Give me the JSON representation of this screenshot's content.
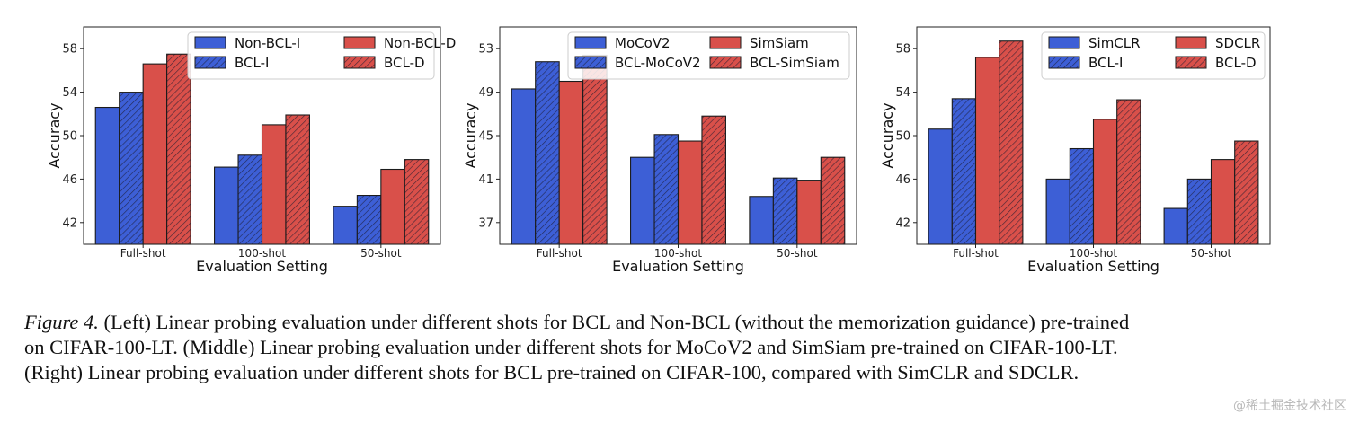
{
  "chart_data": [
    {
      "type": "bar",
      "title": "",
      "xlabel": "Evaluation Setting",
      "ylabel": "Accuracy",
      "categories": [
        "Full-shot",
        "100-shot",
        "50-shot"
      ],
      "ylim": [
        40,
        60
      ],
      "yticks": [
        42,
        46,
        50,
        54,
        58
      ],
      "grid": false,
      "legend_position": "top-right",
      "legend_columns": 2,
      "series": [
        {
          "name": "Non-BCL-I",
          "values": [
            52.6,
            47.1,
            43.5
          ],
          "color": "#3d5fd6",
          "hatched": false
        },
        {
          "name": "BCL-I",
          "values": [
            54.0,
            48.2,
            44.5
          ],
          "color": "#3d5fd6",
          "hatched": true
        },
        {
          "name": "Non-BCL-D",
          "values": [
            56.6,
            51.0,
            46.9
          ],
          "color": "#d9504a",
          "hatched": false
        },
        {
          "name": "BCL-D",
          "values": [
            57.5,
            51.9,
            47.8
          ],
          "color": "#d9504a",
          "hatched": true
        }
      ]
    },
    {
      "type": "bar",
      "title": "",
      "xlabel": "Evaluation Setting",
      "ylabel": "Accuracy",
      "categories": [
        "Full-shot",
        "100-shot",
        "50-shot"
      ],
      "ylim": [
        35,
        55
      ],
      "yticks": [
        37,
        41,
        45,
        49,
        53
      ],
      "grid": false,
      "legend_position": "top-right",
      "legend_columns": 2,
      "series": [
        {
          "name": "MoCoV2",
          "values": [
            49.3,
            43.0,
            39.4
          ],
          "color": "#3d5fd6",
          "hatched": false
        },
        {
          "name": "BCL-MoCoV2",
          "values": [
            51.8,
            45.1,
            41.1
          ],
          "color": "#3d5fd6",
          "hatched": true
        },
        {
          "name": "SimSiam",
          "values": [
            50.0,
            44.5,
            40.9
          ],
          "color": "#d9504a",
          "hatched": false
        },
        {
          "name": "BCL-SimSiam",
          "values": [
            52.4,
            46.8,
            43.0
          ],
          "color": "#d9504a",
          "hatched": true
        }
      ]
    },
    {
      "type": "bar",
      "title": "",
      "xlabel": "Evaluation Setting",
      "ylabel": "Accuracy",
      "categories": [
        "Full-shot",
        "100-shot",
        "50-shot"
      ],
      "ylim": [
        40,
        60
      ],
      "yticks": [
        42,
        46,
        50,
        54,
        58
      ],
      "grid": false,
      "legend_position": "top-right",
      "legend_columns": 2,
      "series": [
        {
          "name": "SimCLR",
          "values": [
            50.6,
            46.0,
            43.3
          ],
          "color": "#3d5fd6",
          "hatched": false
        },
        {
          "name": "BCL-I",
          "values": [
            53.4,
            48.8,
            46.0
          ],
          "color": "#3d5fd6",
          "hatched": true
        },
        {
          "name": "SDCLR",
          "values": [
            57.2,
            51.5,
            47.8
          ],
          "color": "#d9504a",
          "hatched": false
        },
        {
          "name": "BCL-D",
          "values": [
            58.7,
            53.3,
            49.5
          ],
          "color": "#d9504a",
          "hatched": true
        }
      ]
    }
  ],
  "caption": {
    "label": "Figure 4.",
    "line1": " (Left) Linear probing evaluation under different shots for BCL and Non-BCL (without the memorization guidance) pre-trained",
    "line2": "on CIFAR-100-LT. (Middle) Linear probing evaluation under different shots for MoCoV2 and SimSiam pre-trained on CIFAR-100-LT.",
    "line3": "(Right) Linear probing evaluation under different shots for BCL pre-trained on CIFAR-100, compared with SimCLR and SDCLR."
  },
  "watermark": "@稀土掘金技术社区"
}
